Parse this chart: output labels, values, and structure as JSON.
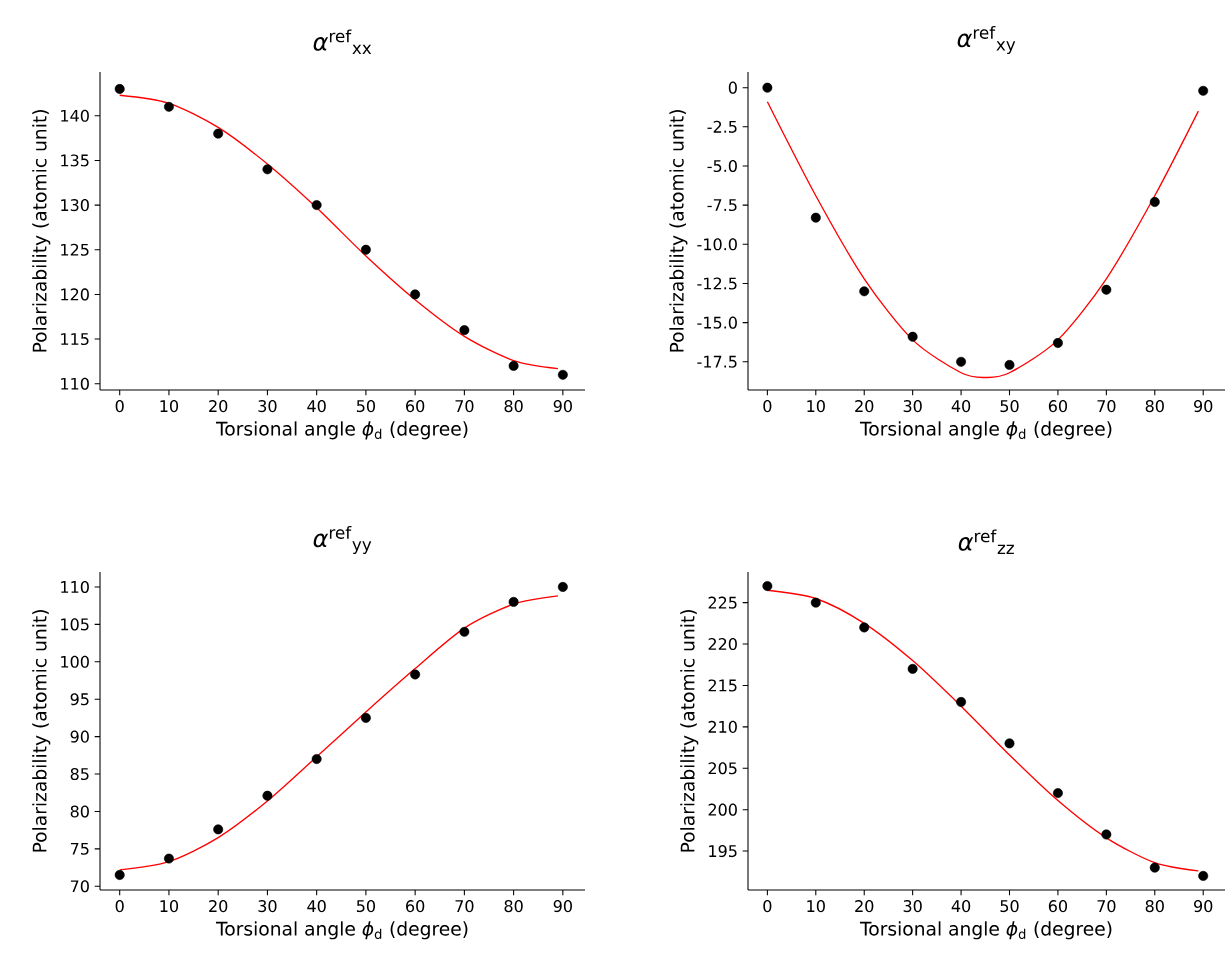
{
  "chart_data": [
    {
      "type": "scatter",
      "title": "*α*$^{ref}$$_{xx}$",
      "xlabel": "Torsional angle *ϕ*$_{d}$ (degree)",
      "ylabel": "Polarizability (atomic unit)",
      "xlim": [
        -4,
        94.5
      ],
      "ylim": [
        109.3,
        144.9
      ],
      "xticks": [
        0,
        10,
        20,
        30,
        40,
        50,
        60,
        70,
        80,
        90
      ],
      "yticks": [
        110,
        115,
        120,
        125,
        130,
        135,
        140
      ],
      "x": [
        0,
        10,
        20,
        30,
        40,
        50,
        60,
        70,
        80,
        90
      ],
      "series": [
        {
          "color": "#000000",
          "marker": "circle",
          "values": [
            143,
            141,
            138,
            134,
            130,
            125,
            120,
            116,
            112,
            111
          ]
        },
        {
          "type": "line",
          "color": "#ff0000",
          "x": [
            0,
            10,
            20,
            30,
            40,
            50,
            60,
            70,
            80,
            89
          ],
          "values": [
            142.3,
            141.4,
            138.7,
            134.6,
            129.7,
            124.3,
            119.4,
            115.3,
            112.6,
            111.7
          ]
        }
      ]
    },
    {
      "type": "scatter",
      "title": "*α*$^{ref}$$_{xy}$",
      "xlabel": "Torsional angle *ϕ*$_{d}$ (degree)",
      "ylabel": "Polarizability (atomic unit)",
      "xlim": [
        -4,
        94.5
      ],
      "ylim": [
        -19.3,
        1.0
      ],
      "xticks": [
        0,
        10,
        20,
        30,
        40,
        50,
        60,
        70,
        80,
        90
      ],
      "yticks": [
        {
          "value": -17.5,
          "label": "-17.5"
        },
        {
          "value": -15,
          "label": "-15.0"
        },
        {
          "value": -12.5,
          "label": "-12.5"
        },
        {
          "value": -10,
          "label": "-10.0"
        },
        {
          "value": -7.5,
          "label": "-7.5"
        },
        {
          "value": -5,
          "label": "-5.0"
        },
        {
          "value": -2.5,
          "label": "-2.5"
        },
        0
      ],
      "x": [
        0,
        10,
        20,
        30,
        40,
        50,
        60,
        70,
        80,
        90
      ],
      "series": [
        {
          "color": "#000000",
          "marker": "circle",
          "values": [
            0,
            -8.3,
            -13.0,
            -15.9,
            -17.5,
            -17.7,
            -16.3,
            -12.9,
            -7.3,
            -0.2
          ]
        },
        {
          "type": "line",
          "color": "#ff0000",
          "x": [
            0,
            10,
            20,
            30,
            40,
            45,
            50,
            60,
            70,
            80,
            89
          ],
          "values": [
            -0.9,
            -6.9,
            -12.2,
            -16.1,
            -18.2,
            -18.5,
            -18.2,
            -16.1,
            -12.2,
            -6.9,
            -1.5
          ]
        }
      ]
    },
    {
      "type": "scatter",
      "title": "*α*$^{ref}$$_{yy}$",
      "xlabel": "Torsional angle *ϕ*$_{d}$ (degree)",
      "ylabel": "Polarizability (atomic unit)",
      "xlim": [
        -4,
        94.5
      ],
      "ylim": [
        69.5,
        112
      ],
      "xticks": [
        0,
        10,
        20,
        30,
        40,
        50,
        60,
        70,
        80,
        90
      ],
      "yticks": [
        70,
        75,
        80,
        85,
        90,
        95,
        100,
        105,
        110
      ],
      "x": [
        0,
        10,
        20,
        30,
        40,
        50,
        60,
        70,
        80,
        90
      ],
      "series": [
        {
          "color": "#000000",
          "marker": "circle",
          "values": [
            71.5,
            73.7,
            77.6,
            82.1,
            87,
            92.5,
            98.3,
            104,
            108,
            110
          ]
        },
        {
          "type": "line",
          "color": "#ff0000",
          "x": [
            0,
            10,
            20,
            30,
            40,
            50,
            60,
            70,
            80,
            89
          ],
          "values": [
            72.2,
            73.3,
            76.5,
            81.4,
            87.3,
            93.3,
            99.1,
            104.5,
            107.7,
            108.8
          ]
        }
      ]
    },
    {
      "type": "scatter",
      "title": "*α*$^{ref}$$_{zz}$",
      "xlabel": "Torsional angle *ϕ*$_{d}$ (degree)",
      "ylabel": "Polarizability (atomic unit)",
      "xlim": [
        -4,
        94.5
      ],
      "ylim": [
        190.3,
        228.7
      ],
      "xticks": [
        0,
        10,
        20,
        30,
        40,
        50,
        60,
        70,
        80,
        90
      ],
      "yticks": [
        195,
        200,
        205,
        210,
        215,
        220,
        225
      ],
      "x": [
        0,
        10,
        20,
        30,
        40,
        50,
        60,
        70,
        80,
        90
      ],
      "series": [
        {
          "color": "#000000",
          "marker": "circle",
          "values": [
            227,
            225,
            222,
            217,
            213,
            208,
            202,
            197,
            193,
            192
          ]
        },
        {
          "type": "line",
          "color": "#ff0000",
          "x": [
            0,
            10,
            20,
            30,
            40,
            50,
            60,
            70,
            80,
            89
          ],
          "values": [
            226.5,
            225.5,
            222.5,
            218.0,
            212.5,
            206.6,
            201.1,
            196.6,
            193.6,
            192.6
          ]
        }
      ]
    }
  ]
}
